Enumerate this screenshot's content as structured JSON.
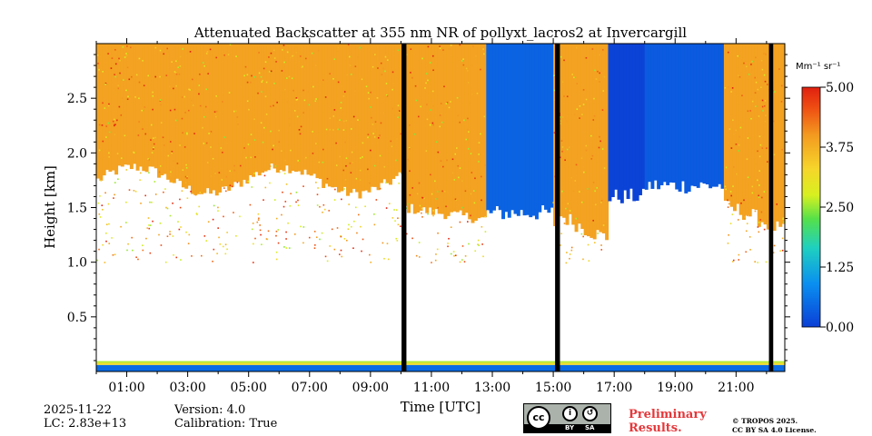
{
  "chart_data": {
    "type": "heatmap",
    "title": "Attenuated Backscatter at 355 nm NR of pollyxt_lacros2 at Invercargill",
    "xlabel": "Time [UTC]",
    "ylabel": "Height [km]",
    "xlim": [
      0.0,
      22.6
    ],
    "ylim": [
      0.0,
      3.0
    ],
    "x_ticks": [
      {
        "value": 1,
        "label": "01:00"
      },
      {
        "value": 3,
        "label": "03:00"
      },
      {
        "value": 5,
        "label": "05:00"
      },
      {
        "value": 7,
        "label": "07:00"
      },
      {
        "value": 9,
        "label": "09:00"
      },
      {
        "value": 11,
        "label": "11:00"
      },
      {
        "value": 13,
        "label": "13:00"
      },
      {
        "value": 15,
        "label": "15:00"
      },
      {
        "value": 17,
        "label": "17:00"
      },
      {
        "value": 19,
        "label": "19:00"
      },
      {
        "value": 21,
        "label": "21:00"
      }
    ],
    "y_ticks": [
      {
        "value": 0.5,
        "label": "0.5"
      },
      {
        "value": 1.0,
        "label": "1.0"
      },
      {
        "value": 1.5,
        "label": "1.5"
      },
      {
        "value": 2.0,
        "label": "2.0"
      },
      {
        "value": 2.5,
        "label": "2.5"
      }
    ],
    "colorbar": {
      "unit_label": "Mm⁻¹ sr⁻¹",
      "range": [
        0.0,
        5.0
      ],
      "ticks": [
        {
          "value": 0.0,
          "label": "0.00"
        },
        {
          "value": 1.25,
          "label": "1.25"
        },
        {
          "value": 2.5,
          "label": "2.50"
        },
        {
          "value": 3.75,
          "label": "3.75"
        },
        {
          "value": 5.0,
          "label": "5.00"
        }
      ]
    },
    "no_data_periods": [
      [
        10.02,
        10.18
      ],
      [
        15.06,
        15.22
      ],
      [
        22.08,
        22.22
      ]
    ],
    "cloud_regions": [
      {
        "x": [
          12.75,
          14.95
        ],
        "y_base": 1.45,
        "value": 0.4
      },
      {
        "x": [
          16.75,
          17.95
        ],
        "y_base": 1.6,
        "value": 0.05
      },
      {
        "x": [
          17.95,
          20.6
        ],
        "y_base": 1.7,
        "value": 0.3
      }
    ]
  },
  "footer": {
    "date": "2025-11-22",
    "lc": "LC: 2.83e+13",
    "version": "Version: 4.0",
    "calibration": "Calibration: True",
    "preliminary_line1": "Preliminary",
    "preliminary_line2": "Results.",
    "copyright_line1": "© TROPOS 2025.",
    "copyright_line2": "CC BY SA 4.0 License.",
    "license_badge": {
      "cc": "cc",
      "by": "BY",
      "sa": "SA"
    }
  }
}
